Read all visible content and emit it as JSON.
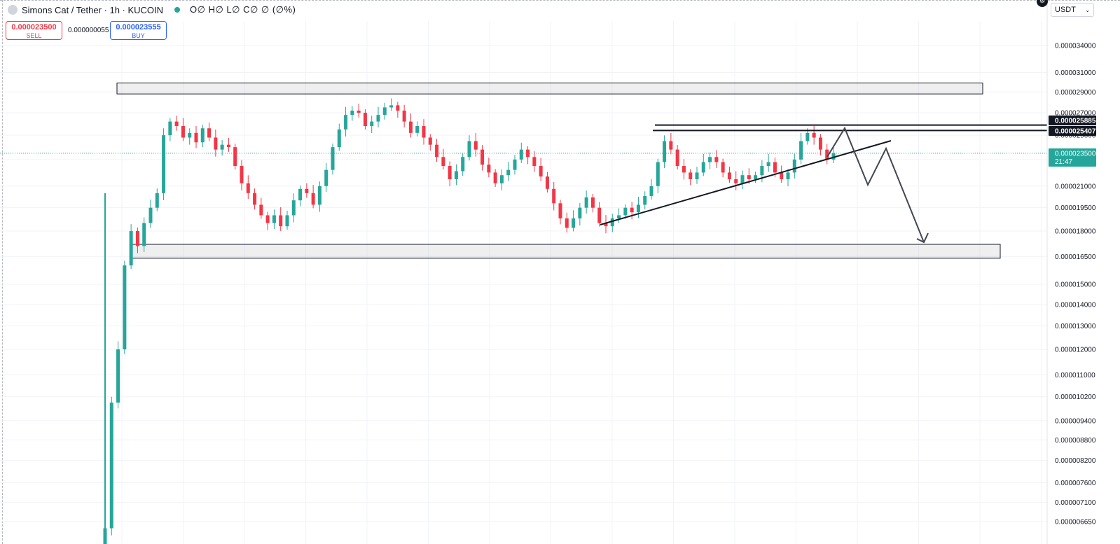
{
  "header": {
    "symbol_title": "Simons Cat / Tether · 1h · KUCOIN",
    "ohlc": "O∅ H∅ L∅ C∅ ∅ (∅%)"
  },
  "trade": {
    "sell_price": "0.000023500",
    "sell_label": "SELL",
    "spread": "0.000000055",
    "buy_price": "0.000023555",
    "buy_label": "BUY"
  },
  "currency": {
    "label": "USDT",
    "chevron": "chevron-down-icon"
  },
  "colors": {
    "up": "#26a69a",
    "down": "#f23645",
    "grid": "#f0f3fa",
    "drawing": "#131722"
  },
  "chart_data": {
    "type": "candlestick",
    "scale": "log",
    "grid": true,
    "y_ticks": [
      "0.000034000",
      "0.000031000",
      "0.000029000",
      "0.000027000",
      "0.000025000",
      "0.000023000",
      "0.000021000",
      "0.000019500",
      "0.000018000",
      "0.000016500",
      "0.000015000",
      "0.000014000",
      "0.000013000",
      "0.000012000",
      "0.000011000",
      "0.000010200",
      "0.000009400",
      "0.000008800",
      "0.000008200",
      "0.000007600",
      "0.000007100",
      "0.000006650"
    ],
    "price_labels": [
      {
        "value": "0.000025885",
        "style": "black"
      },
      {
        "value": "0.000025407",
        "style": "black"
      },
      {
        "value": "0.000023500",
        "style": "teal",
        "countdown": "21:47"
      }
    ],
    "current_price": 2.35e-05,
    "series_close": [
      6.5e-06,
      1e-05,
      1.2e-05,
      1.6e-05,
      1.8e-05,
      1.71e-05,
      1.85e-05,
      1.95e-05,
      2.05e-05,
      2.5e-05,
      2.62e-05,
      2.58e-05,
      2.48e-05,
      2.52e-05,
      2.44e-05,
      2.56e-05,
      2.48e-05,
      2.38e-05,
      2.42e-05,
      2.4e-05,
      2.25e-05,
      2.12e-05,
      2.05e-05,
      1.97e-05,
      1.9e-05,
      1.85e-05,
      1.9e-05,
      1.83e-05,
      1.9e-05,
      2e-05,
      2.08e-05,
      2.05e-05,
      1.97e-05,
      2.1e-05,
      2.22e-05,
      2.4e-05,
      2.55e-05,
      2.68e-05,
      2.72e-05,
      2.7e-05,
      2.58e-05,
      2.62e-05,
      2.68e-05,
      2.75e-05,
      2.77e-05,
      2.72e-05,
      2.62e-05,
      2.52e-05,
      2.58e-05,
      2.48e-05,
      2.42e-05,
      2.32e-05,
      2.25e-05,
      2.15e-05,
      2.21e-05,
      2.32e-05,
      2.45e-05,
      2.38e-05,
      2.26e-05,
      2.2e-05,
      2.12e-05,
      2.18e-05,
      2.22e-05,
      2.3e-05,
      2.38e-05,
      2.32e-05,
      2.25e-05,
      2.17e-05,
      2.08e-05,
      1.98e-05,
      1.88e-05,
      1.82e-05,
      1.88e-05,
      1.95e-05,
      2.02e-05,
      1.95e-05,
      1.85e-05,
      1.83e-05,
      1.88e-05,
      1.9e-05,
      1.95e-05,
      1.92e-05,
      1.97e-05,
      2.03e-05,
      2.1e-05,
      2.28e-05,
      2.45e-05,
      2.38e-05,
      2.25e-05,
      2.2e-05,
      2.15e-05,
      2.2e-05,
      2.28e-05,
      2.32e-05,
      2.28e-05,
      2.2e-05,
      2.15e-05,
      2.12e-05,
      2.18e-05,
      2.15e-05,
      2.18e-05,
      2.25e-05,
      2.28e-05,
      2.2e-05,
      2.15e-05,
      2.2e-05,
      2.3e-05,
      2.45e-05,
      2.52e-05,
      2.48e-05,
      2.38e-05,
      2.3e-05,
      2.35e-05
    ],
    "annotations": [
      {
        "type": "zone",
        "label": "resistance-zone",
        "from": 2.88e-05,
        "to": 2.99e-05
      },
      {
        "type": "zone",
        "label": "support-zone",
        "from": 1.64e-05,
        "to": 1.72e-05
      },
      {
        "type": "horizontal-line",
        "value": 2.5885e-05
      },
      {
        "type": "horizontal-line",
        "value": 2.5407e-05
      },
      {
        "type": "trend-line",
        "label": "rising-trendline"
      },
      {
        "type": "projection-path",
        "label": "bearish-projection"
      }
    ]
  }
}
